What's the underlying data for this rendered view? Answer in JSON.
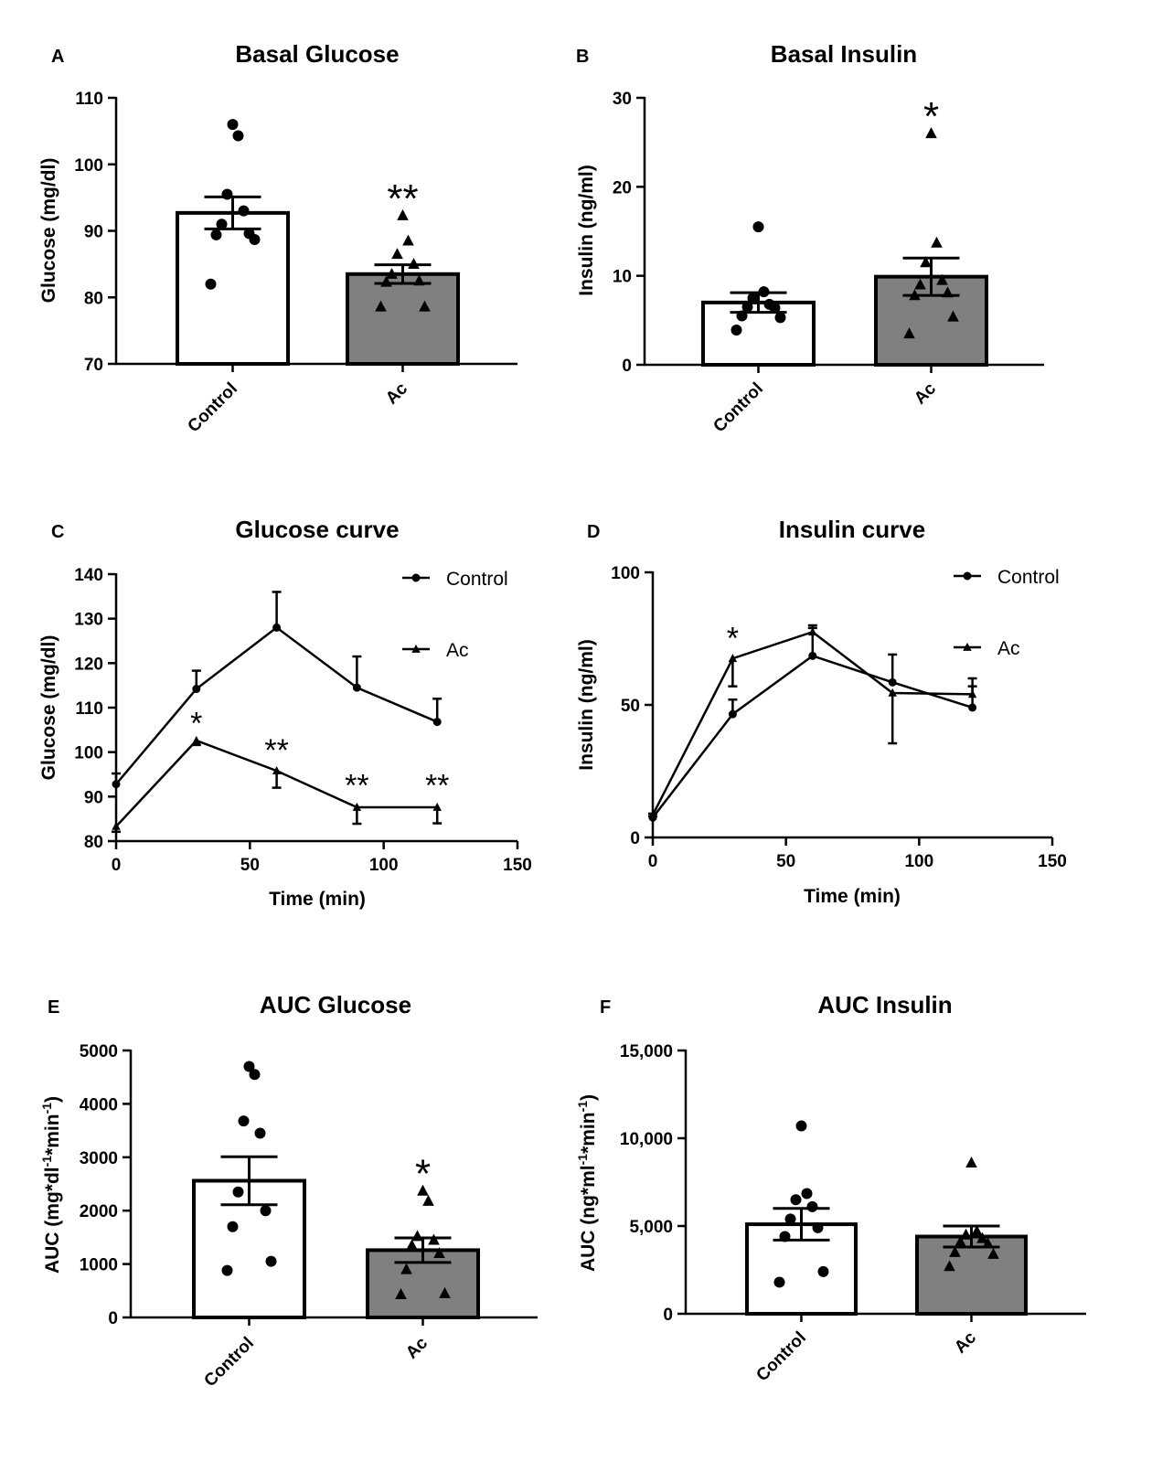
{
  "chart_data": [
    {
      "panel": "A",
      "type": "bar",
      "title": "Basal Glucose",
      "ylabel": "Glucose (mg/dl)",
      "xlabel": "",
      "ylim": [
        70,
        110
      ],
      "yticks": [
        70,
        80,
        90,
        100,
        110
      ],
      "ytick_labels": [
        "70",
        "80",
        "90",
        "100",
        "110"
      ],
      "categories": [
        "Control",
        "Ac"
      ],
      "values": [
        92.7,
        83.5
      ],
      "sem": [
        2.4,
        1.4
      ],
      "fills": [
        "#ffffff",
        "#808080"
      ],
      "points": [
        [
          106,
          104.3,
          95.5,
          93,
          91,
          89.6,
          89.4,
          88.7,
          82
        ],
        [
          92.3,
          88.5,
          86.5,
          85,
          83.5,
          82.5,
          82.3,
          78.6,
          78.6
        ]
      ],
      "markers": [
        "circle",
        "triangle"
      ],
      "significance": [
        "",
        "**"
      ]
    },
    {
      "panel": "B",
      "type": "bar",
      "title": "Basal Insulin",
      "ylabel": "Insulin (ng/ml)",
      "xlabel": "",
      "ylim": [
        0,
        30
      ],
      "yticks": [
        0,
        10,
        20,
        30
      ],
      "ytick_labels": [
        "0",
        "10",
        "20",
        "30"
      ],
      "categories": [
        "Control",
        "Ac"
      ],
      "values": [
        7.0,
        9.9
      ],
      "sem": [
        1.1,
        2.1
      ],
      "fills": [
        "#ffffff",
        "#808080"
      ],
      "points": [
        [
          15.5,
          8.2,
          7.5,
          6.8,
          6.5,
          6.4,
          5.5,
          5.3,
          3.9
        ],
        [
          26,
          13.7,
          11.5,
          9.5,
          9.0,
          8.1,
          7.8,
          5.4,
          3.5
        ]
      ],
      "markers": [
        "circle",
        "triangle"
      ],
      "significance": [
        "",
        "*"
      ]
    },
    {
      "panel": "C",
      "type": "line",
      "title": "Glucose curve",
      "ylabel": "Glucose (mg/dl)",
      "xlabel": "Time (min)",
      "xlim": [
        0,
        150
      ],
      "ylim": [
        80,
        140
      ],
      "xticks": [
        0,
        50,
        100,
        150
      ],
      "xtick_labels": [
        "0",
        "50",
        "100",
        "150"
      ],
      "yticks": [
        80,
        90,
        100,
        110,
        120,
        130,
        140
      ],
      "ytick_labels": [
        "80",
        "90",
        "100",
        "110",
        "120",
        "130",
        "140"
      ],
      "x": [
        0,
        30,
        60,
        90,
        120
      ],
      "series": [
        {
          "name": "Control",
          "marker": "circle",
          "values": [
            92.8,
            114.2,
            128,
            114.5,
            106.8
          ],
          "sem": [
            2.4,
            4.1,
            8,
            7,
            5.2
          ]
        },
        {
          "name": "Ac",
          "marker": "triangle",
          "values": [
            83.3,
            102.6,
            95.8,
            87.6,
            87.6
          ],
          "sem": [
            1.2,
            1.0,
            3.8,
            3.7,
            3.6
          ]
        }
      ],
      "annotations": [
        {
          "x": 30,
          "y": 107,
          "text": "*"
        },
        {
          "x": 60,
          "y": 101,
          "text": "**"
        },
        {
          "x": 90,
          "y": 93,
          "text": "**"
        },
        {
          "x": 120,
          "y": 93,
          "text": "**"
        }
      ]
    },
    {
      "panel": "D",
      "type": "line",
      "title": "Insulin curve",
      "ylabel": "Insulin (ng/ml)",
      "xlabel": "Time (min)",
      "xlim": [
        0,
        150
      ],
      "ylim": [
        0,
        100
      ],
      "xticks": [
        0,
        50,
        100,
        150
      ],
      "xtick_labels": [
        "0",
        "50",
        "100",
        "150"
      ],
      "yticks": [
        0,
        50,
        100
      ],
      "ytick_labels": [
        "0",
        "50",
        "100"
      ],
      "x": [
        0,
        30,
        60,
        90,
        120
      ],
      "series": [
        {
          "name": "Control",
          "marker": "circle",
          "values": [
            7.5,
            46.5,
            68.5,
            58.5,
            49.0
          ],
          "sem": [
            0.5,
            5.5,
            10.5,
            10.5,
            11
          ]
        },
        {
          "name": "Ac",
          "marker": "triangle",
          "values": [
            8.5,
            67.5,
            77.5,
            54.5,
            54.0
          ],
          "sem": [
            0.5,
            10.5,
            2.5,
            19,
            3
          ]
        }
      ],
      "annotations": [
        {
          "x": 30,
          "y": 76,
          "text": "*"
        }
      ]
    },
    {
      "panel": "E",
      "type": "bar",
      "title": "AUC Glucose",
      "ylabel": "AUC (mg*dl-1*min-1)",
      "xlabel": "",
      "ylim": [
        0,
        5000
      ],
      "yticks": [
        0,
        1000,
        2000,
        3000,
        4000,
        5000
      ],
      "ytick_labels": [
        "0",
        "1000",
        "2000",
        "3000",
        "4000",
        "5000"
      ],
      "categories": [
        "Control",
        "Ac"
      ],
      "values": [
        2560,
        1260
      ],
      "sem": [
        450,
        230
      ],
      "fills": [
        "#ffffff",
        "#808080"
      ],
      "points": [
        [
          4700,
          4550,
          3680,
          3450,
          2350,
          2000,
          1700,
          1050,
          880
        ],
        [
          2370,
          2180,
          1520,
          1450,
          1350,
          1200,
          900,
          450,
          430
        ]
      ],
      "markers": [
        "circle",
        "triangle"
      ],
      "significance": [
        "",
        "*"
      ]
    },
    {
      "panel": "F",
      "type": "bar",
      "title": "AUC Insulin",
      "ylabel": "AUC (ng*ml-1*min-1)",
      "xlabel": "",
      "ylim": [
        0,
        15000
      ],
      "yticks": [
        0,
        5000,
        10000,
        15000
      ],
      "ytick_labels": [
        "0",
        "5,000",
        "10,000",
        "15,000"
      ],
      "categories": [
        "Control",
        "Ac"
      ],
      "values": [
        5100,
        4400
      ],
      "sem": [
        900,
        600
      ],
      "fills": [
        "#ffffff",
        "#808080"
      ],
      "points": [
        [
          10700,
          6850,
          6500,
          6100,
          5400,
          4900,
          4400,
          2400,
          1800
        ],
        [
          8600,
          4700,
          4500,
          4300,
          4100,
          4000,
          3500,
          3400,
          2700
        ]
      ],
      "markers": [
        "circle",
        "triangle"
      ],
      "significance": [
        "",
        ""
      ]
    }
  ],
  "labels": {
    "ylabel_e": {
      "pre": "AUC (mg*dl",
      "sup1": "-1",
      "mid": "*min",
      "sup2": "-1",
      "post": ")"
    },
    "ylabel_f": {
      "pre": "AUC (ng*ml",
      "sup1": "-1",
      "mid": "*min",
      "sup2": "-1",
      "post": ")"
    }
  }
}
